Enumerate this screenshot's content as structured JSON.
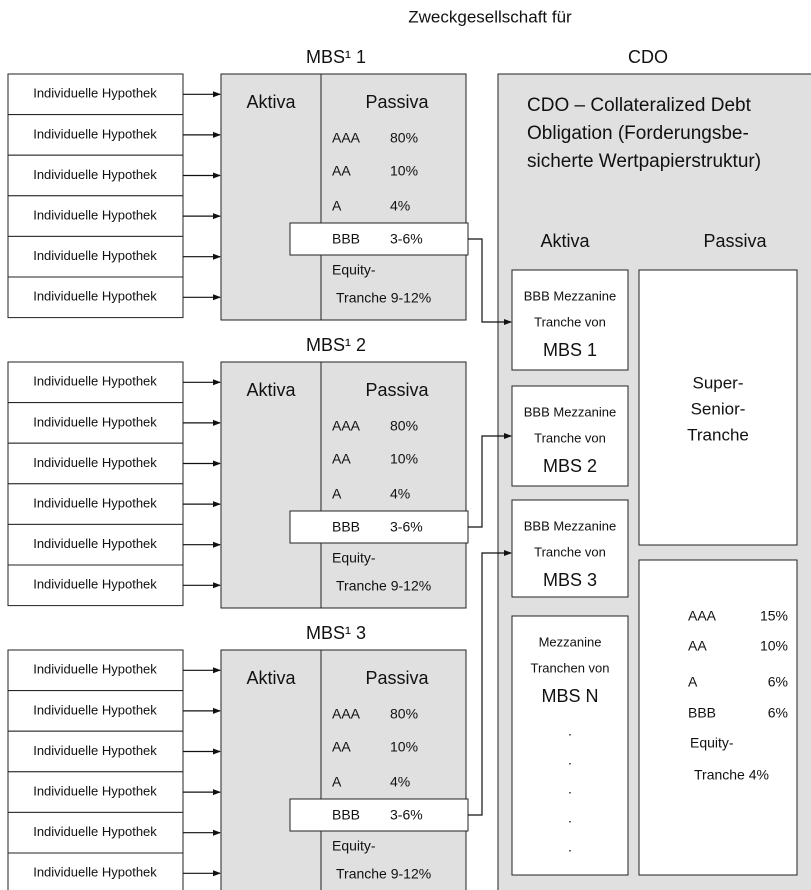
{
  "header": "Zweckgesellschaft für",
  "mbs": [
    {
      "title": "MBS¹ 1",
      "mortgages": [
        "Individuelle Hypothek",
        "Individuelle Hypothek",
        "Individuelle Hypothek",
        "Individuelle Hypothek",
        "Individuelle Hypothek",
        "Individuelle Hypothek"
      ],
      "aktiva": "Aktiva",
      "passiva": "Passiva",
      "tranches": [
        {
          "rating": "AAA",
          "share": "80%"
        },
        {
          "rating": "AA",
          "share": "10%"
        },
        {
          "rating": "A",
          "share": "4%"
        },
        {
          "rating": "BBB",
          "share": "3-6%"
        }
      ],
      "equity": [
        "Equity-",
        "Tranche 9-12%"
      ]
    },
    {
      "title": "MBS¹ 2",
      "mortgages": [
        "Individuelle Hypothek",
        "Individuelle Hypothek",
        "Individuelle Hypothek",
        "Individuelle Hypothek",
        "Individuelle Hypothek",
        "Individuelle Hypothek"
      ],
      "aktiva": "Aktiva",
      "passiva": "Passiva",
      "tranches": [
        {
          "rating": "AAA",
          "share": "80%"
        },
        {
          "rating": "AA",
          "share": "10%"
        },
        {
          "rating": "A",
          "share": "4%"
        },
        {
          "rating": "BBB",
          "share": "3-6%"
        }
      ],
      "equity": [
        "Equity-",
        "Tranche 9-12%"
      ]
    },
    {
      "title": "MBS¹ 3",
      "mortgages": [
        "Individuelle Hypothek",
        "Individuelle Hypothek",
        "Individuelle Hypothek",
        "Individuelle Hypothek",
        "Individuelle Hypothek",
        "Individuelle Hypothek"
      ],
      "aktiva": "Aktiva",
      "passiva": "Passiva",
      "tranches": [
        {
          "rating": "AAA",
          "share": "80%"
        },
        {
          "rating": "AA",
          "share": "10%"
        },
        {
          "rating": "A",
          "share": "4%"
        },
        {
          "rating": "BBB",
          "share": "3-6%"
        }
      ],
      "equity": [
        "Equity-",
        "Tranche 9-12%"
      ]
    }
  ],
  "cdo": {
    "title": "CDO",
    "description": [
      "CDO – Collateralized Debt",
      "Obligation (Forderungsbe-",
      "sicherte Wertpapierstruktur)"
    ],
    "aktiva": "Aktiva",
    "passiva": "Passiva",
    "assets": [
      [
        "BBB Mezzanine",
        "Tranche von",
        "MBS 1"
      ],
      [
        "BBB Mezzanine",
        "Tranche von",
        "MBS 2"
      ],
      [
        "BBB Mezzanine",
        "Tranche von",
        "MBS 3"
      ],
      [
        "Mezzanine",
        "Tranchen von",
        "MBS N"
      ]
    ],
    "dots": [
      ".",
      ".",
      ".",
      ".",
      "."
    ],
    "super_senior": [
      "Super-",
      "Senior-",
      "Tranche"
    ],
    "tranches": [
      {
        "rating": "AAA",
        "share": "15%"
      },
      {
        "rating": "AA",
        "share": "10%"
      },
      {
        "rating": "A",
        "share": "6%"
      },
      {
        "rating": "BBB",
        "share": "6%"
      }
    ],
    "equity": [
      "Equity-",
      "Tranche 4%"
    ]
  }
}
